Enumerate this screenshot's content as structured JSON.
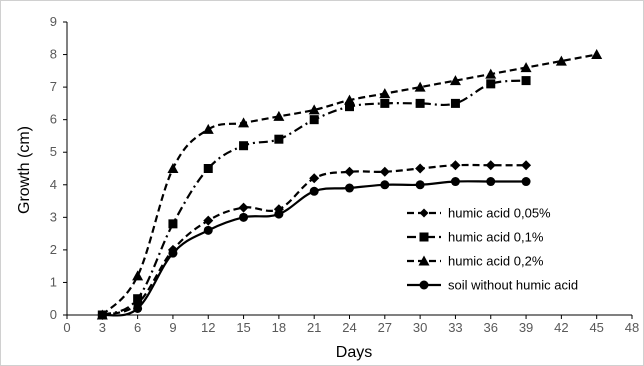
{
  "chart_data": {
    "type": "line",
    "title": "",
    "xlabel": "Days",
    "ylabel": "Growth (cm)",
    "xlim": [
      0,
      48
    ],
    "ylim": [
      0,
      9
    ],
    "xticks": [
      0,
      3,
      6,
      9,
      12,
      15,
      18,
      21,
      24,
      27,
      30,
      33,
      36,
      39,
      42,
      45,
      48
    ],
    "yticks": [
      0,
      1,
      2,
      3,
      4,
      5,
      6,
      7,
      8,
      9
    ],
    "grid": false,
    "legend_position": "right",
    "series": [
      {
        "name": "humic acid 0,05%",
        "marker": "diamond",
        "dash": "dash",
        "color": "#000000",
        "x": [
          3,
          6,
          9,
          12,
          15,
          18,
          21,
          24,
          27,
          30,
          33,
          36,
          39
        ],
        "y": [
          0.0,
          0.35,
          2.0,
          2.9,
          3.3,
          3.25,
          4.2,
          4.4,
          4.4,
          4.5,
          4.6,
          4.6,
          4.6
        ]
      },
      {
        "name": "humic acid 0,1%",
        "marker": "square",
        "dash": "dashdot",
        "color": "#000000",
        "x": [
          3,
          6,
          9,
          12,
          15,
          18,
          21,
          24,
          27,
          30,
          33,
          36,
          39
        ],
        "y": [
          0.0,
          0.5,
          2.8,
          4.5,
          5.2,
          5.4,
          6.0,
          6.4,
          6.5,
          6.5,
          6.5,
          7.1,
          7.2
        ]
      },
      {
        "name": "humic acid 0,2%",
        "marker": "triangle",
        "dash": "dash",
        "color": "#000000",
        "x": [
          3,
          6,
          9,
          12,
          15,
          18,
          21,
          24,
          27,
          30,
          33,
          36,
          39,
          42,
          45
        ],
        "y": [
          0.0,
          1.2,
          4.5,
          5.7,
          5.9,
          6.1,
          6.3,
          6.6,
          6.8,
          7.0,
          7.2,
          7.4,
          7.6,
          7.8,
          8.0
        ]
      },
      {
        "name": "soil without humic acid",
        "marker": "circle",
        "dash": "solid",
        "color": "#000000",
        "x": [
          3,
          6,
          9,
          12,
          15,
          18,
          21,
          24,
          27,
          30,
          33,
          36,
          39
        ],
        "y": [
          0.0,
          0.2,
          1.9,
          2.6,
          3.0,
          3.1,
          3.8,
          3.9,
          4.0,
          4.0,
          4.1,
          4.1,
          4.1
        ]
      }
    ]
  }
}
